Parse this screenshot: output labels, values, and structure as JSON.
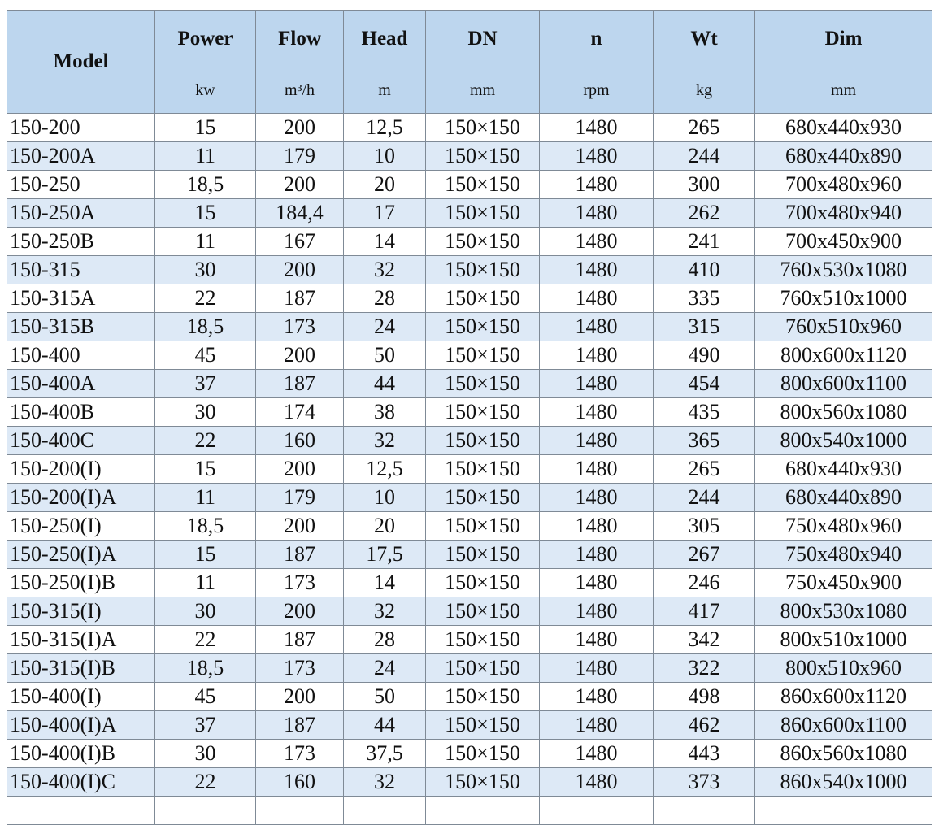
{
  "table": {
    "model_header": "Model",
    "headers": [
      "Power",
      "Flow",
      "Head",
      "DN",
      "n",
      "Wt",
      "Dim"
    ],
    "units": [
      "kw",
      "m³/h",
      "m",
      "mm",
      "rpm",
      "kg",
      "mm"
    ],
    "rows": [
      [
        "150-200",
        "15",
        "200",
        "12,5",
        "150×150",
        "1480",
        "265",
        "680x440x930"
      ],
      [
        "150-200A",
        "11",
        "179",
        "10",
        "150×150",
        "1480",
        "244",
        "680x440x890"
      ],
      [
        "150-250",
        "18,5",
        "200",
        "20",
        "150×150",
        "1480",
        "300",
        "700x480x960"
      ],
      [
        "150-250A",
        "15",
        "184,4",
        "17",
        "150×150",
        "1480",
        "262",
        "700x480x940"
      ],
      [
        "150-250B",
        "11",
        "167",
        "14",
        "150×150",
        "1480",
        "241",
        "700x450x900"
      ],
      [
        "150-315",
        "30",
        "200",
        "32",
        "150×150",
        "1480",
        "410",
        "760x530x1080"
      ],
      [
        "150-315A",
        "22",
        "187",
        "28",
        "150×150",
        "1480",
        "335",
        "760x510x1000"
      ],
      [
        "150-315B",
        "18,5",
        "173",
        "24",
        "150×150",
        "1480",
        "315",
        "760x510x960"
      ],
      [
        "150-400",
        "45",
        "200",
        "50",
        "150×150",
        "1480",
        "490",
        "800x600x1120"
      ],
      [
        "150-400A",
        "37",
        "187",
        "44",
        "150×150",
        "1480",
        "454",
        "800x600x1100"
      ],
      [
        "150-400B",
        "30",
        "174",
        "38",
        "150×150",
        "1480",
        "435",
        "800x560x1080"
      ],
      [
        "150-400C",
        "22",
        "160",
        "32",
        "150×150",
        "1480",
        "365",
        "800x540x1000"
      ],
      [
        "150-200(I)",
        "15",
        "200",
        "12,5",
        "150×150",
        "1480",
        "265",
        "680x440x930"
      ],
      [
        "150-200(I)A",
        "11",
        "179",
        "10",
        "150×150",
        "1480",
        "244",
        "680x440x890"
      ],
      [
        "150-250(I)",
        "18,5",
        "200",
        "20",
        "150×150",
        "1480",
        "305",
        "750x480x960"
      ],
      [
        "150-250(I)A",
        "15",
        "187",
        "17,5",
        "150×150",
        "1480",
        "267",
        "750x480x940"
      ],
      [
        "150-250(I)B",
        "11",
        "173",
        "14",
        "150×150",
        "1480",
        "246",
        "750x450x900"
      ],
      [
        "150-315(I)",
        "30",
        "200",
        "32",
        "150×150",
        "1480",
        "417",
        "800x530x1080"
      ],
      [
        "150-315(I)A",
        "22",
        "187",
        "28",
        "150×150",
        "1480",
        "342",
        "800x510x1000"
      ],
      [
        "150-315(I)B",
        "18,5",
        "173",
        "24",
        "150×150",
        "1480",
        "322",
        "800x510x960"
      ],
      [
        "150-400(I)",
        "45",
        "200",
        "50",
        "150×150",
        "1480",
        "498",
        "860x600x1120"
      ],
      [
        "150-400(I)A",
        "37",
        "187",
        "44",
        "150×150",
        "1480",
        "462",
        "860x600x1100"
      ],
      [
        "150-400(I)B",
        "30",
        "173",
        "37,5",
        "150×150",
        "1480",
        "443",
        "860x560x1080"
      ],
      [
        "150-400(I)C",
        "22",
        "160",
        "32",
        "150×150",
        "1480",
        "373",
        "860x540x1000"
      ]
    ]
  },
  "colors": {
    "header_bg": "#bdd6ee",
    "alt_row_bg": "#dde9f6",
    "border": "#7f8a96"
  }
}
